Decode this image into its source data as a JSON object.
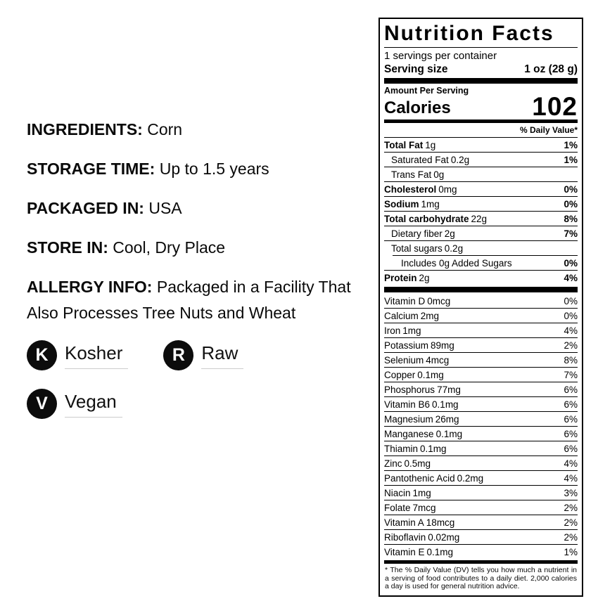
{
  "colors": {
    "text": "#000000",
    "badge_background": "#0c0c0c",
    "badge_underline": "#cccccc",
    "panel_border": "#000000"
  },
  "product_info": {
    "fields": [
      {
        "label": "INGREDIENTS:",
        "value": "Corn"
      },
      {
        "label": "STORAGE TIME:",
        "value": "Up to 1.5 years"
      },
      {
        "label": "PACKAGED IN:",
        "value": "USA"
      },
      {
        "label": "STORE IN:",
        "value": "Cool, Dry Place"
      },
      {
        "label": "ALLERGY INFO:",
        "value": "Packaged in a Facility That Also Processes Tree Nuts and Wheat"
      }
    ],
    "badges": [
      {
        "letter": "K",
        "label": "Kosher"
      },
      {
        "letter": "R",
        "label": "Raw"
      },
      {
        "letter": "V",
        "label": "Vegan"
      }
    ]
  },
  "nutrition_label": {
    "title": "Nutrition Facts",
    "servings_per_container": "1 servings per container",
    "serving_size": {
      "label": "Serving size",
      "value": "1 oz (28 g)"
    },
    "amount_per_serving": "Amount Per Serving",
    "calories": {
      "label": "Calories",
      "value": "102"
    },
    "daily_value_header": "% Daily Value*",
    "main_rows": [
      {
        "name": "Total Fat",
        "amount": "1g",
        "dv": "1%",
        "bold": true,
        "indent": 0
      },
      {
        "name": "Saturated Fat",
        "amount": "0.2g",
        "dv": "1%",
        "bold": false,
        "indent": 1
      },
      {
        "name": "Trans Fat",
        "amount": "0g",
        "dv": "",
        "bold": false,
        "indent": 1
      },
      {
        "name": "Cholesterol",
        "amount": "0mg",
        "dv": "0%",
        "bold": true,
        "indent": 0
      },
      {
        "name": "Sodium",
        "amount": "1mg",
        "dv": "0%",
        "bold": true,
        "indent": 0
      },
      {
        "name": "Total carbohydrate",
        "amount": "22g",
        "dv": "8%",
        "bold": true,
        "indent": 0
      },
      {
        "name": "Dietary fiber",
        "amount": "2g",
        "dv": "7%",
        "bold": false,
        "indent": 1
      },
      {
        "name": "Total sugars",
        "amount": "0.2g",
        "dv": "",
        "bold": false,
        "indent": 1,
        "sep_indent": true
      },
      {
        "name": "Includes 0g Added Sugars",
        "amount": "",
        "dv": "0%",
        "bold": false,
        "indent": 2
      },
      {
        "name": "Protein",
        "amount": "2g",
        "dv": "4%",
        "bold": true,
        "indent": 0
      }
    ],
    "micro_rows": [
      {
        "name": "Vitamin D",
        "amount": "0mcg",
        "dv": "0%"
      },
      {
        "name": "Calcium",
        "amount": "2mg",
        "dv": "0%"
      },
      {
        "name": "Iron",
        "amount": "1mg",
        "dv": "4%"
      },
      {
        "name": "Potassium",
        "amount": "89mg",
        "dv": "2%"
      },
      {
        "name": "Selenium",
        "amount": "4mcg",
        "dv": "8%"
      },
      {
        "name": "Copper",
        "amount": "0.1mg",
        "dv": "7%"
      },
      {
        "name": "Phosphorus",
        "amount": "77mg",
        "dv": "6%"
      },
      {
        "name": "Vitamin B6",
        "amount": "0.1mg",
        "dv": "6%"
      },
      {
        "name": "Magnesium",
        "amount": "26mg",
        "dv": "6%"
      },
      {
        "name": "Manganese",
        "amount": "0.1mg",
        "dv": "6%"
      },
      {
        "name": "Thiamin",
        "amount": "0.1mg",
        "dv": "6%"
      },
      {
        "name": "Zinc",
        "amount": "0.5mg",
        "dv": "4%"
      },
      {
        "name": "Pantothenic Acid",
        "amount": "0.2mg",
        "dv": "4%"
      },
      {
        "name": "Niacin",
        "amount": "1mg",
        "dv": "3%"
      },
      {
        "name": "Folate",
        "amount": "7mcg",
        "dv": "2%"
      },
      {
        "name": "Vitamin A",
        "amount": "18mcg",
        "dv": "2%"
      },
      {
        "name": "Riboflavin",
        "amount": "0.02mg",
        "dv": "2%"
      },
      {
        "name": "Vitamin E",
        "amount": "0.1mg",
        "dv": "1%"
      }
    ],
    "footnote": "* The % Daily Value (DV) tells you how much a nutrient in a serving of food contributes to a daily diet. 2,000 calories a day is used for general nutrition advice."
  }
}
